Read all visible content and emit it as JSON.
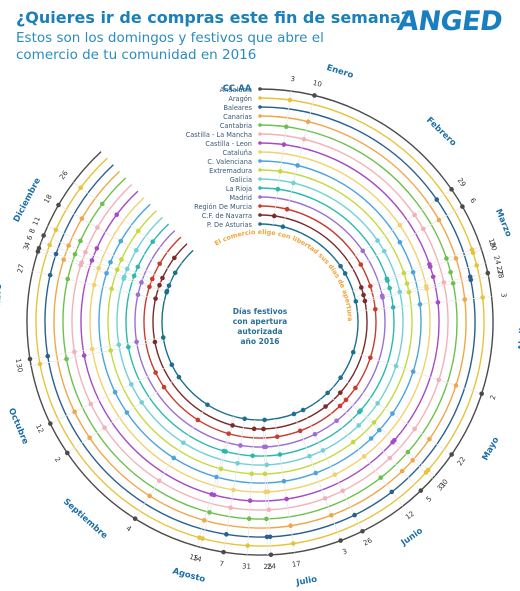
{
  "header": {
    "title": "¿Quieres ir de compras este fin de semana?",
    "subtitle": "Estos son los domingos y festivos que abre el comercio de tu comunidad en 2016",
    "logo": "ANGED"
  },
  "chart_data": {
    "type": "radial",
    "title": "Días festivos con apertura autorizada año 2016",
    "legend_title": "CC.AA",
    "note": "El comercio elige con libertad sus días de apertura",
    "colors": {
      "accent": "#1b80b8",
      "month": "#1b6fa8",
      "note": "#f4a33a"
    },
    "regions": [
      {
        "name": "Andalucía",
        "color": "#4b4b4b"
      },
      {
        "name": "Aragón",
        "color": "#e8c23a"
      },
      {
        "name": "Baleares",
        "color": "#2b5f8f"
      },
      {
        "name": "Canarias",
        "color": "#f0a64a"
      },
      {
        "name": "Cantabria",
        "color": "#6dc04d"
      },
      {
        "name": "Castilla - La Mancha",
        "color": "#f4b0b8"
      },
      {
        "name": "Castilla - Leon",
        "color": "#a64bc4"
      },
      {
        "name": "Cataluña",
        "color": "#f2d16b"
      },
      {
        "name": "C. Valenciana",
        "color": "#4aa5d9"
      },
      {
        "name": "Extremadura",
        "color": "#c3d93d"
      },
      {
        "name": "Galicia",
        "color": "#6fd1d6"
      },
      {
        "name": "La Rioja",
        "color": "#29b9ad"
      },
      {
        "name": "Madrid",
        "color": "#9b6fd1"
      },
      {
        "name": "Región De Murcia",
        "color": "#c93a2f"
      },
      {
        "name": "C.F. de Navarra",
        "color": "#7b2b2b"
      },
      {
        "name": "P. De Asturias",
        "color": "#1c6e8e"
      }
    ],
    "months": [
      {
        "name": "Enero",
        "days": [
          "3",
          "10"
        ]
      },
      {
        "name": "Febrero",
        "days": [
          "29"
        ]
      },
      {
        "name": "Marzo",
        "days": [
          "6",
          "19",
          "20",
          "24",
          "27",
          "28"
        ]
      },
      {
        "name": "Abril",
        "days": [
          "3"
        ]
      },
      {
        "name": "Mayo",
        "days": [
          "31",
          "30",
          "22",
          "2"
        ]
      },
      {
        "name": "Junio",
        "days": [
          "26",
          "12",
          "5"
        ]
      },
      {
        "name": "Julio",
        "days": [
          "31",
          "25",
          "24",
          "17",
          "3"
        ]
      },
      {
        "name": "Agosto",
        "days": [
          "15",
          "14",
          "7"
        ]
      },
      {
        "name": "Septiembre",
        "days": [
          "4"
        ]
      },
      {
        "name": "Octubre",
        "days": [
          "30",
          "12",
          "2"
        ]
      },
      {
        "name": "Noviembre",
        "days": [
          "1",
          "27"
        ]
      },
      {
        "name": "Diciembre",
        "days": [
          "3",
          "4",
          "6",
          "8",
          "11",
          "18",
          "26"
        ]
      }
    ]
  }
}
